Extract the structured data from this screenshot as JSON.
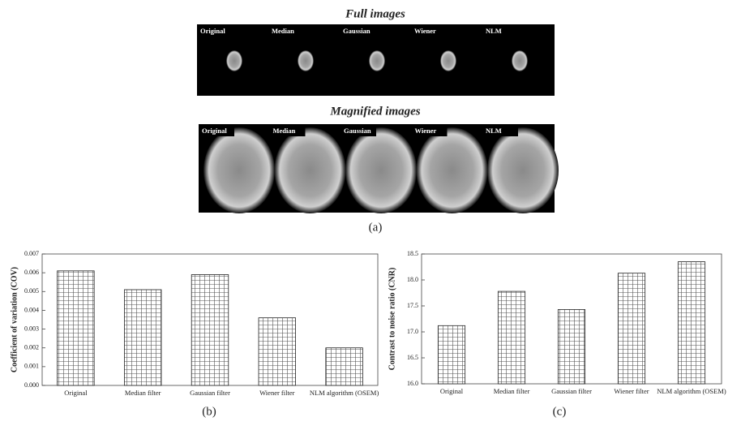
{
  "panel_a": {
    "full_title": "Full images",
    "magnified_title": "Magnified images",
    "labels": [
      "Original",
      "Median",
      "Gaussian",
      "Wiener",
      "NLM"
    ],
    "caption": "(a)"
  },
  "chart_data": [
    {
      "type": "bar",
      "ylabel": "Coefficient of variation (COV)",
      "caption": "(b)",
      "categories": [
        "Original",
        "Median filter",
        "Gaussian filter",
        "Wiener filter",
        "NLM algorithm (OSEM)"
      ],
      "values": [
        0.0061,
        0.0051,
        0.0059,
        0.0036,
        0.002
      ],
      "color": "#ffffff",
      "ylim": [
        0,
        0.007
      ],
      "yticks": [
        {
          "value": 0,
          "label": "0.000"
        },
        0.001,
        0.002,
        0.003,
        0.004,
        0.005,
        0.006,
        0.007
      ]
    },
    {
      "type": "bar",
      "ylabel": "Contrast to noise ratio (CNR)",
      "caption": "(c)",
      "categories": [
        "Original",
        "Median filter",
        "Gaussian filter",
        "Wiener filter",
        "NLM algorithm (OSEM)"
      ],
      "values": [
        17.12,
        17.78,
        17.43,
        18.13,
        18.35
      ],
      "color": "#ffffff",
      "ylim": [
        16,
        18.5
      ],
      "yticks": [
        {
          "value": 16,
          "label": "16.0"
        },
        16.5,
        {
          "value": 17,
          "label": "17.0"
        },
        17.5,
        {
          "value": 18,
          "label": "18.0"
        },
        18.5
      ]
    }
  ]
}
